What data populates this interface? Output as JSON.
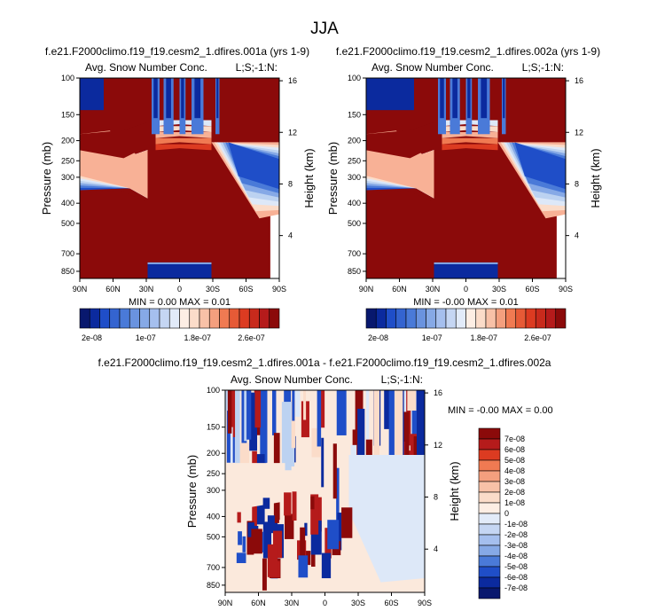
{
  "page_title": "JJA",
  "chart_data": [
    {
      "type": "heatmap",
      "title": "f.e21.F2000climo.f19_f19.cesm2_1.dfires.001a (yrs 1-9)",
      "subtitle_left": "Avg. Snow Number Conc.",
      "subtitle_right": "L;S;-1:N:",
      "xlabel": "",
      "ylabel": "Pressure (mb)",
      "ylabel_right": "Height (km)",
      "x_ticks": [
        "90N",
        "60N",
        "30N",
        "0",
        "30S",
        "60S",
        "90S"
      ],
      "y_ticks": [
        "100",
        "150",
        "200",
        "250",
        "300",
        "400",
        "500",
        "700",
        "850"
      ],
      "y_ticks_right": [
        "16",
        "12",
        "8",
        "4"
      ],
      "stats": "MIN =  0.00   MAX =  0.01",
      "colorbar_labels": [
        "2e-08",
        "1e-07",
        "1.8e-07",
        "2.6e-07"
      ]
    },
    {
      "type": "heatmap",
      "title": "f.e21.F2000climo.f19_f19.cesm2_1.dfires.002a (yrs 1-9)",
      "subtitle_left": "Avg. Snow Number Conc.",
      "subtitle_right": "L;S;-1:N:",
      "xlabel": "",
      "ylabel": "Pressure (mb)",
      "ylabel_right": "Height (km)",
      "x_ticks": [
        "90N",
        "60N",
        "30N",
        "0",
        "30S",
        "60S",
        "90S"
      ],
      "y_ticks": [
        "100",
        "150",
        "200",
        "250",
        "300",
        "400",
        "500",
        "700",
        "850"
      ],
      "y_ticks_right": [
        "16",
        "12",
        "8",
        "4"
      ],
      "stats": "MIN = -0.00   MAX =  0.01",
      "colorbar_labels": [
        "2e-08",
        "1e-07",
        "1.8e-07",
        "2.6e-07"
      ]
    },
    {
      "type": "heatmap",
      "title": "f.e21.F2000climo.f19_f19.cesm2_1.dfires.001a - f.e21.F2000climo.f19_f19.cesm2_1.dfires.002a",
      "subtitle_left": "Avg. Snow Number Conc.",
      "subtitle_right": "L;S;-1:N:",
      "xlabel": "",
      "ylabel": "Pressure (mb)",
      "ylabel_right": "Height (km)",
      "x_ticks": [
        "90N",
        "60N",
        "30N",
        "0",
        "30S",
        "60S",
        "90S"
      ],
      "y_ticks": [
        "100",
        "150",
        "200",
        "250",
        "300",
        "400",
        "500",
        "700",
        "850"
      ],
      "y_ticks_right": [
        "16",
        "12",
        "8",
        "4"
      ],
      "stats": "MIN = -0.00   MAX =  0.00",
      "colorbar_labels": [
        "7e-08",
        "6e-08",
        "5e-08",
        "4e-08",
        "3e-08",
        "2e-08",
        "1e-08",
        "0",
        "-1e-08",
        "-2e-08",
        "-3e-08",
        "-4e-08",
        "-5e-08",
        "-6e-08",
        "-7e-08"
      ]
    }
  ]
}
